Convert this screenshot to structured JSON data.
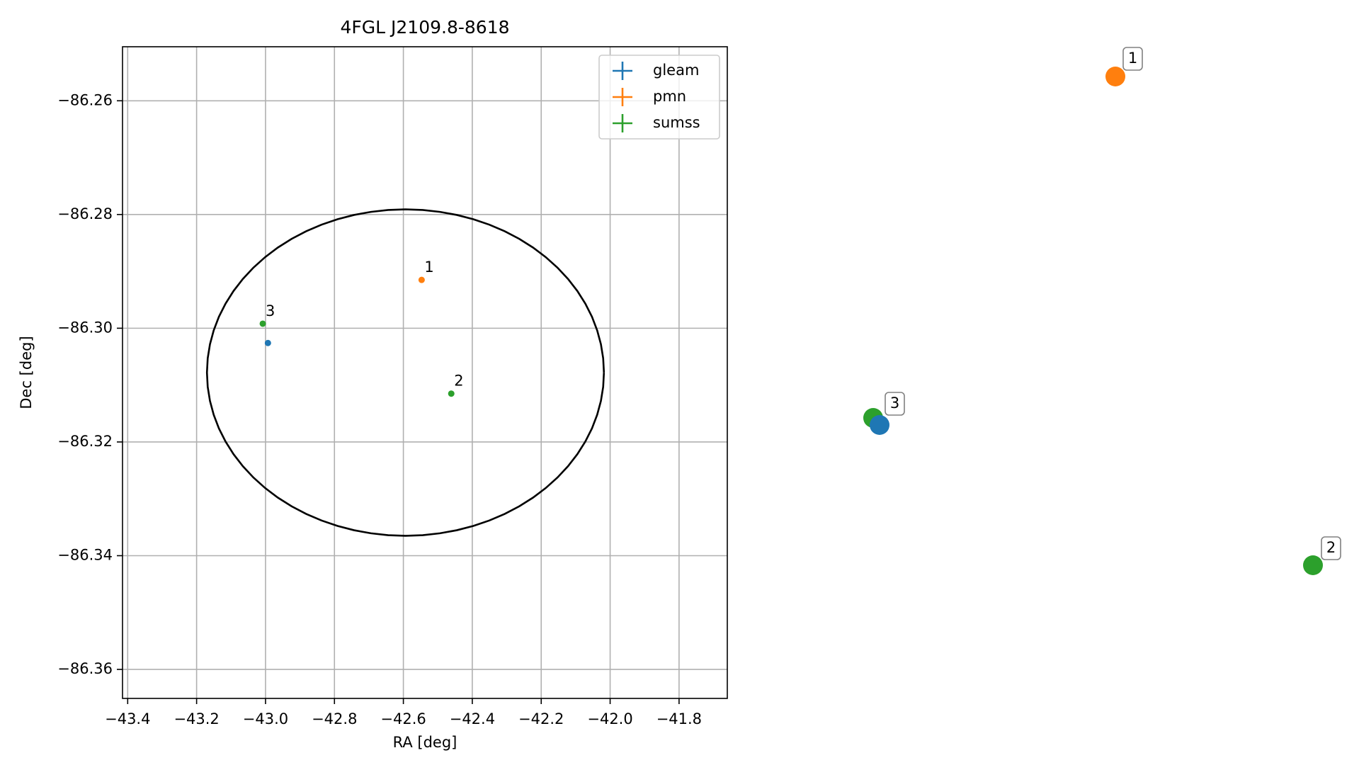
{
  "chart_data": {
    "type": "scatter",
    "title": "4FGL J2109.8-8618",
    "xlabel": "RA [deg]",
    "ylabel": "Dec [deg]",
    "xlim": [
      -43.415,
      -41.66
    ],
    "ylim": [
      -86.3651,
      -86.2505
    ],
    "grid": true,
    "legend_position": "top-right",
    "x_ticks": [
      "-43.4",
      "-43.2",
      "-43.0",
      "-42.8",
      "-42.6",
      "-42.4",
      "-42.2",
      "-42.0",
      "-41.8"
    ],
    "x_tick_values": [
      -43.4,
      -43.2,
      -43.0,
      -42.8,
      -42.6,
      -42.4,
      -42.2,
      -42.0,
      -41.8
    ],
    "y_ticks": [
      "-86.26",
      "-86.28",
      "-86.30",
      "-86.32",
      "-86.34",
      "-86.36"
    ],
    "y_tick_values": [
      -86.26,
      -86.28,
      -86.3,
      -86.32,
      -86.34,
      -86.36
    ],
    "ellipse": {
      "center_ra": -42.594,
      "center_dec": -86.3078,
      "semi_axis_ra": 0.576,
      "semi_axis_dec": 0.0287,
      "color": "#000000"
    },
    "series": [
      {
        "name": "gleam",
        "color": "#1f77b4",
        "points": [
          {
            "ra": -42.993,
            "dec": -86.3026
          }
        ]
      },
      {
        "name": "pmn",
        "color": "#ff7f0e",
        "points": [
          {
            "ra": -42.547,
            "dec": -86.2915,
            "label": "1"
          }
        ]
      },
      {
        "name": "sumss",
        "color": "#2ca02c",
        "points": [
          {
            "ra": -42.461,
            "dec": -86.3115,
            "label": "2"
          },
          {
            "ra": -43.008,
            "dec": -86.2992,
            "label": "3"
          }
        ]
      }
    ],
    "side_panel": {
      "markers": [
        {
          "label": "1",
          "color": "#ff7f0e"
        },
        {
          "label": "2",
          "color": "#2ca02c"
        },
        {
          "label": "3",
          "color": "#2ca02c"
        },
        {
          "label": "",
          "color": "#1f77b4"
        }
      ]
    }
  }
}
